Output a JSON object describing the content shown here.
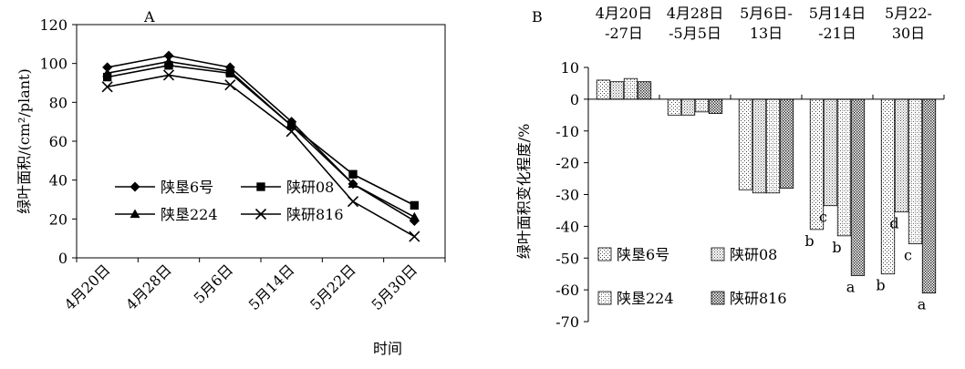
{
  "chart_data": [
    {
      "panel_label": "A",
      "type": "line",
      "x": [
        "4月20日",
        "4月28日",
        "5月6日",
        "5月14日",
        "5月22日",
        "5月30日"
      ],
      "xlabel": "时间",
      "ylabel": "绿叶面积/(cm²/plant)",
      "ylim": [
        0,
        120
      ],
      "yticks": [
        "0",
        "20",
        "40",
        "60",
        "80",
        "100",
        "120"
      ],
      "grid": false,
      "legend_position": "center-left",
      "series": [
        {
          "name": "陕垦6号",
          "marker": "diamond",
          "values": [
            98,
            104,
            98,
            70,
            38,
            19
          ]
        },
        {
          "name": "陕研08",
          "marker": "square",
          "values": [
            93,
            99,
            95,
            68,
            43,
            27
          ]
        },
        {
          "name": "陕垦224",
          "marker": "triangle",
          "values": [
            95,
            101,
            96,
            68,
            38,
            21
          ]
        },
        {
          "name": "陕研816",
          "marker": "x",
          "values": [
            88,
            94,
            89,
            65,
            29,
            11
          ]
        }
      ]
    },
    {
      "panel_label": "B",
      "type": "bar",
      "categories": [
        "4月20日\n-27日",
        "4月28日\n-5月5日",
        "5月6日-\n13日",
        "5月14日\n-21日",
        "5月22-\n30日"
      ],
      "ylabel": "绿叶面积变化程度/%",
      "ylim": [
        -70,
        10
      ],
      "yticks": [
        "10",
        "0",
        "-10",
        "-20",
        "-30",
        "-40",
        "-50",
        "-60",
        "-70"
      ],
      "grid": false,
      "legend_position": "bottom-left",
      "series": [
        {
          "name": "陕垦6号",
          "values": [
            6,
            -5,
            -28.5,
            -41,
            -55
          ],
          "labels": [
            "",
            "",
            "",
            "b",
            "b"
          ]
        },
        {
          "name": "陕研08",
          "values": [
            5.5,
            -5,
            -29.5,
            -33.5,
            -35.5
          ],
          "labels": [
            "",
            "",
            "",
            "c",
            "d"
          ]
        },
        {
          "name": "陕垦224",
          "values": [
            6.5,
            -4,
            -29.5,
            -43,
            -45.5
          ],
          "labels": [
            "",
            "",
            "",
            "b",
            "c"
          ]
        },
        {
          "name": "陕研816",
          "values": [
            5.5,
            -4.5,
            -28,
            -55.5,
            -61
          ],
          "labels": [
            "",
            "",
            "",
            "a",
            "a"
          ]
        }
      ]
    }
  ]
}
